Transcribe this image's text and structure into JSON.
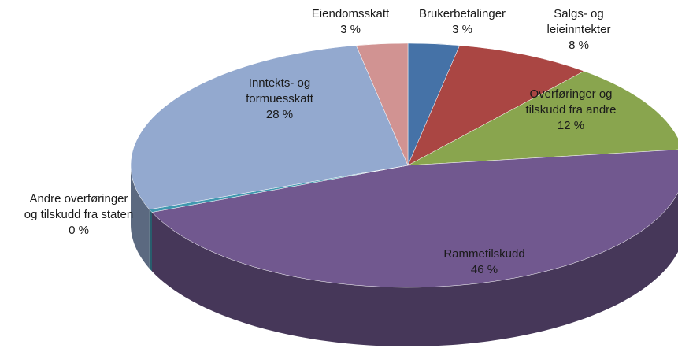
{
  "chart_data": {
    "type": "pie3d",
    "categories": [
      "Brukerbetalinger",
      "Salgs- og\nleieinntekter",
      "Overføringer og\ntilskudd fra andre",
      "Rammetilskudd",
      "Andre overføringer\nog tilskudd fra staten",
      "Inntekts- og\nformuesskatt",
      "Eiendomsskatt"
    ],
    "values": [
      3,
      8,
      12,
      46,
      0.4,
      28,
      3
    ],
    "value_labels": [
      "3 %",
      "8 %",
      "12 %",
      "46 %",
      "0 %",
      "28 %",
      "3 %"
    ],
    "colors": [
      "#4572a7",
      "#aa4643",
      "#89a54e",
      "#71588f",
      "#4198af",
      "#93a9cf",
      "#d19392"
    ]
  }
}
